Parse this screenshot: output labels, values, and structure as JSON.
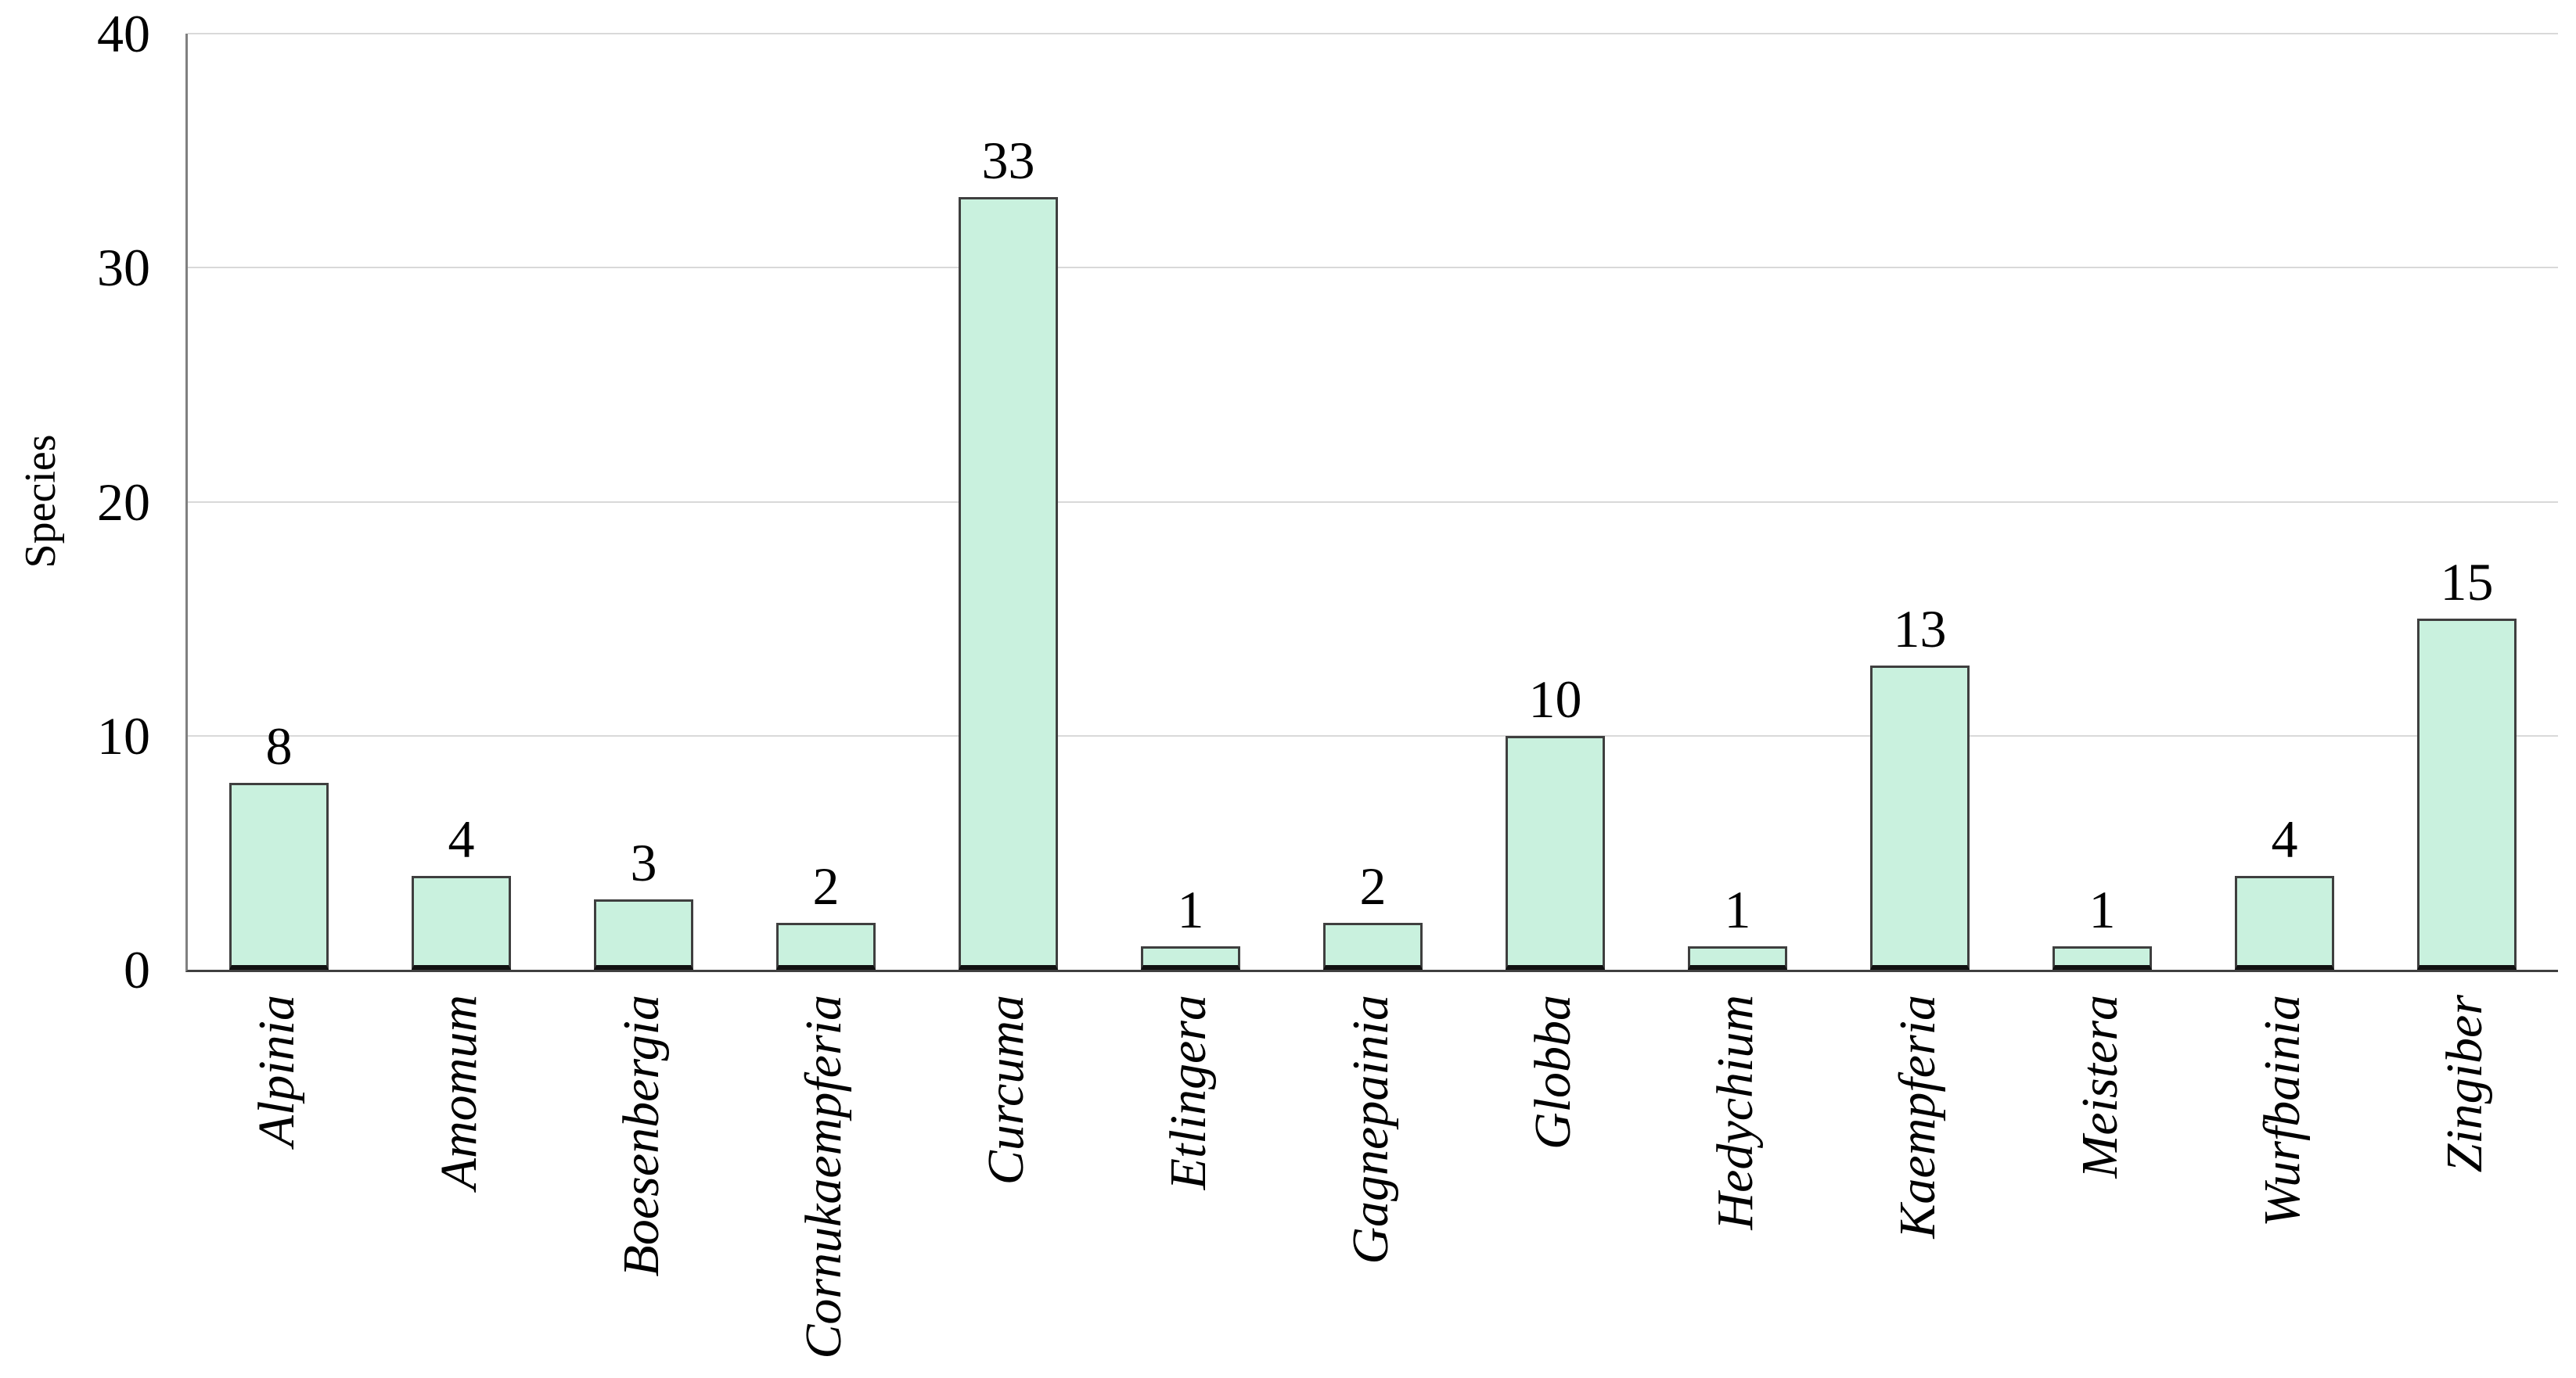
{
  "chart_data": {
    "type": "bar",
    "title": "",
    "ylabel": "Species",
    "ylim": [
      0,
      40
    ],
    "yticks": [
      40,
      30,
      20,
      10,
      0
    ],
    "ytick_labels": [
      "40",
      "30",
      "20",
      "10",
      "0"
    ],
    "grid": true,
    "legend": false,
    "categories": [
      "Alpinia",
      "Amomum",
      "Boesenbergia",
      "Cornukaempferia",
      "Curcuma",
      "Etlingera",
      "Gagnepainia",
      "Globba",
      "Hedychium",
      "Kaempferia",
      "Meistera",
      "Wurfbainia",
      "Zingiber"
    ],
    "values": [
      8,
      4,
      3,
      2,
      33,
      1,
      2,
      10,
      1,
      13,
      1,
      4,
      15
    ],
    "bar_labels": [
      "8",
      "4",
      "3",
      "2",
      "33",
      "1",
      "2",
      "10",
      "1",
      "13",
      "1",
      "4",
      "15"
    ],
    "colors": {
      "bar_fill": "#C9F1DE",
      "bar_border": "#3F3F3F",
      "bar_border_bottom": "#111111",
      "gridline": "#D9D9D9",
      "y_axis_line": "#808080",
      "x_axis_line": "#404040",
      "text": "#000000"
    }
  }
}
